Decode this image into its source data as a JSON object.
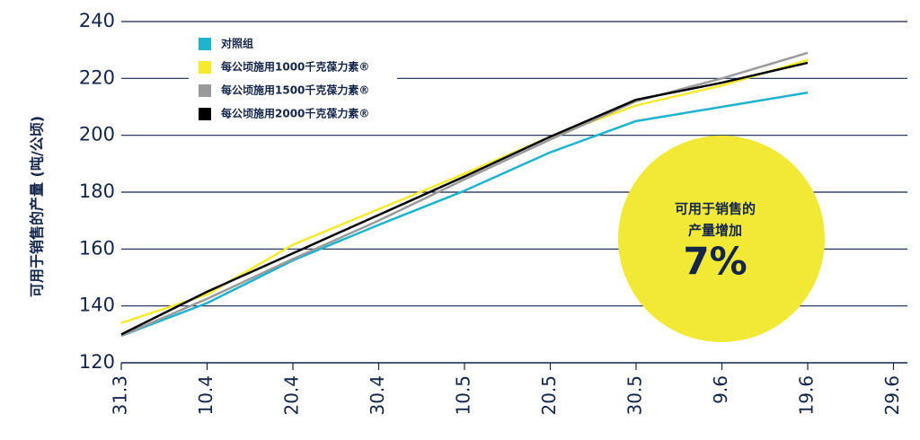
{
  "chart_data": {
    "type": "line",
    "y_label": "可用于销售的产量 (吨/公顷)",
    "categories": [
      "31.3",
      "10.4",
      "20.4",
      "30.4",
      "10.5",
      "20.5",
      "30.5",
      "9.6",
      "19.6",
      "29.6"
    ],
    "series": [
      {
        "name": "对照组",
        "color": "#1fb3cf",
        "values": [
          129.5,
          141,
          156,
          168.5,
          180.5,
          194,
          205,
          210,
          215,
          null
        ]
      },
      {
        "name": "每公顷施用1000千克葆力素®",
        "color": "#f6ea2c",
        "values": [
          134,
          144,
          161.5,
          174,
          186.5,
          199.5,
          210.5,
          217.5,
          226.5,
          null
        ]
      },
      {
        "name": "每公顷施用1500千克葆力素®",
        "color": "#9a9a9a",
        "values": [
          129.5,
          142.5,
          156.5,
          170,
          184.5,
          198.5,
          212,
          220,
          229,
          null
        ]
      },
      {
        "name": "每公顷施用2000千克葆力素®",
        "color": "#000000",
        "values": [
          130,
          145,
          158.5,
          172,
          185.5,
          199.5,
          212.5,
          218.5,
          225.5,
          null
        ]
      }
    ],
    "ylim": [
      120,
      240
    ],
    "yticks": [
      120,
      140,
      160,
      180,
      200,
      220,
      240
    ],
    "grid": true,
    "legend": "upper left",
    "annotation": {
      "lines": [
        "可用于销售的",
        "产量增加"
      ],
      "value": "7%",
      "color": "#f2e936"
    }
  }
}
